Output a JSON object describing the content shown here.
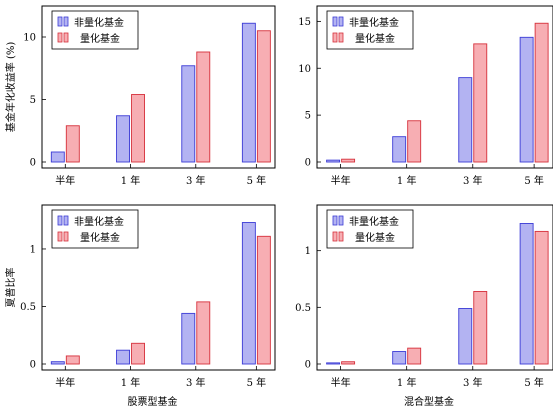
{
  "chart_data": [
    {
      "type": "bar",
      "panel": "top-left",
      "categories": [
        "半年",
        "1 年",
        "3 年",
        "5 年"
      ],
      "series": [
        {
          "name": "非量化基金",
          "values": [
            0.8,
            3.7,
            7.7,
            11.1
          ]
        },
        {
          "name": "量化基金",
          "values": [
            2.9,
            5.4,
            8.8,
            10.5
          ]
        }
      ],
      "ylabel": "基金年化收益率 (%)",
      "xlabel": "",
      "ylim": [
        0,
        12
      ],
      "yticks": [
        0,
        5,
        10
      ],
      "legend": "top-left",
      "grid": false
    },
    {
      "type": "bar",
      "panel": "top-right",
      "categories": [
        "半年",
        "1 年",
        "3 年",
        "5 年"
      ],
      "series": [
        {
          "name": "非量化基金",
          "values": [
            0.2,
            2.7,
            9.0,
            13.3
          ]
        },
        {
          "name": "量化基金",
          "values": [
            0.3,
            4.4,
            12.6,
            14.8
          ]
        }
      ],
      "ylabel": "",
      "xlabel": "",
      "ylim": [
        0,
        16
      ],
      "yticks": [
        0,
        5,
        10,
        15
      ],
      "legend": "top-left",
      "grid": false
    },
    {
      "type": "bar",
      "panel": "bottom-left",
      "categories": [
        "半年",
        "1 年",
        "3 年",
        "5 年"
      ],
      "series": [
        {
          "name": "非量化基金",
          "values": [
            0.02,
            0.12,
            0.44,
            1.23
          ]
        },
        {
          "name": "量化基金",
          "values": [
            0.07,
            0.18,
            0.54,
            1.11
          ]
        }
      ],
      "ylabel": "夏普比率",
      "xlabel": "股票型基金",
      "ylim": [
        0,
        1.33
      ],
      "yticks": [
        0,
        0.5,
        1
      ],
      "legend": "top-left",
      "grid": false
    },
    {
      "type": "bar",
      "panel": "bottom-right",
      "categories": [
        "半年",
        "1 年",
        "3 年",
        "5 年"
      ],
      "series": [
        {
          "name": "非量化基金",
          "values": [
            0.01,
            0.11,
            0.49,
            1.24
          ]
        },
        {
          "name": "量化基金",
          "values": [
            0.02,
            0.14,
            0.64,
            1.17
          ]
        }
      ],
      "ylabel": "",
      "xlabel": "混合型基金",
      "ylim": [
        0,
        1.35
      ],
      "yticks": [
        0,
        0.5,
        1
      ],
      "legend": "top-left",
      "grid": false
    }
  ],
  "colors": {
    "non_quant_fill": "#b3b3f2",
    "non_quant_stroke": "#3b3bd6",
    "quant_fill": "#f7aeb3",
    "quant_stroke": "#d6303b"
  }
}
